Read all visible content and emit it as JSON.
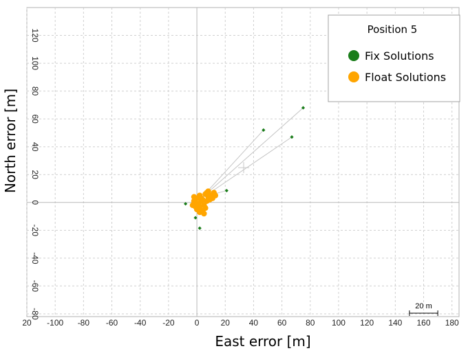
{
  "chart_data": {
    "type": "scatter",
    "title": "",
    "xlabel": "East error [m]",
    "ylabel": "North error [m]",
    "xlim": [
      -120,
      185
    ],
    "ylim": [
      -82,
      140
    ],
    "x_ticks": [
      "20",
      "-100",
      "-80",
      "-60",
      "-40",
      "-20",
      "0",
      "20",
      "40",
      "60",
      "80",
      "100",
      "120",
      "140",
      "160",
      "180"
    ],
    "y_ticks": [
      "120",
      "100",
      "80",
      "60",
      "40",
      "20",
      "0",
      "-20",
      "-40",
      "-60",
      "-80"
    ],
    "grid": true,
    "legend": {
      "title": "Position 5",
      "placement": "top-right",
      "entries": [
        {
          "label": "Fix Solutions",
          "color": "#1a7d1a"
        },
        {
          "label": "Float Solutions",
          "color": "#ffa500"
        }
      ]
    },
    "scale_bar": {
      "label": "20 m",
      "length_m": 20
    },
    "mean_marker": {
      "x": 33,
      "y": 25
    },
    "series": [
      {
        "name": "Fix Solutions",
        "color": "#1a7d1a",
        "points": [
          {
            "x": 75,
            "y": 68
          },
          {
            "x": 47,
            "y": 52
          },
          {
            "x": 67,
            "y": 47
          },
          {
            "x": 21,
            "y": 8.5
          },
          {
            "x": -8,
            "y": -1
          },
          {
            "x": -1,
            "y": -11
          },
          {
            "x": 2,
            "y": -18.5
          }
        ]
      },
      {
        "name": "Float Solutions",
        "color": "#ffa500",
        "points": [
          {
            "x": -3,
            "y": -2
          },
          {
            "x": -1,
            "y": 0
          },
          {
            "x": 0,
            "y": 3
          },
          {
            "x": -2,
            "y": 4
          },
          {
            "x": 2,
            "y": 5
          },
          {
            "x": 4,
            "y": 2
          },
          {
            "x": 6,
            "y": 6
          },
          {
            "x": 8,
            "y": 8
          },
          {
            "x": 10,
            "y": 5
          },
          {
            "x": 12,
            "y": 7
          },
          {
            "x": 13,
            "y": 5
          },
          {
            "x": 11,
            "y": 3
          },
          {
            "x": 7,
            "y": 1
          },
          {
            "x": 5,
            "y": -2
          },
          {
            "x": 6,
            "y": -4
          },
          {
            "x": 4,
            "y": -6
          },
          {
            "x": 5,
            "y": -8
          },
          {
            "x": 2,
            "y": -7
          },
          {
            "x": 0,
            "y": -5
          },
          {
            "x": -1,
            "y": -3
          },
          {
            "x": 1,
            "y": -1
          },
          {
            "x": 3,
            "y": 1
          },
          {
            "x": 8,
            "y": 4
          },
          {
            "x": 9,
            "y": 2
          },
          {
            "x": 3,
            "y": 3
          },
          {
            "x": 7,
            "y": 7
          },
          {
            "x": 2,
            "y": -3
          },
          {
            "x": -2,
            "y": 1
          }
        ]
      }
    ],
    "connector_lines": [
      {
        "from": {
          "x": 2,
          "y": 2
        },
        "to": {
          "x": 75,
          "y": 68
        }
      },
      {
        "from": {
          "x": 2,
          "y": 2
        },
        "to": {
          "x": 47,
          "y": 52
        }
      },
      {
        "from": {
          "x": 2,
          "y": 2
        },
        "to": {
          "x": 67,
          "y": 47
        }
      },
      {
        "from": {
          "x": 4,
          "y": 4
        },
        "to": {
          "x": 21,
          "y": 8.5
        }
      }
    ]
  }
}
